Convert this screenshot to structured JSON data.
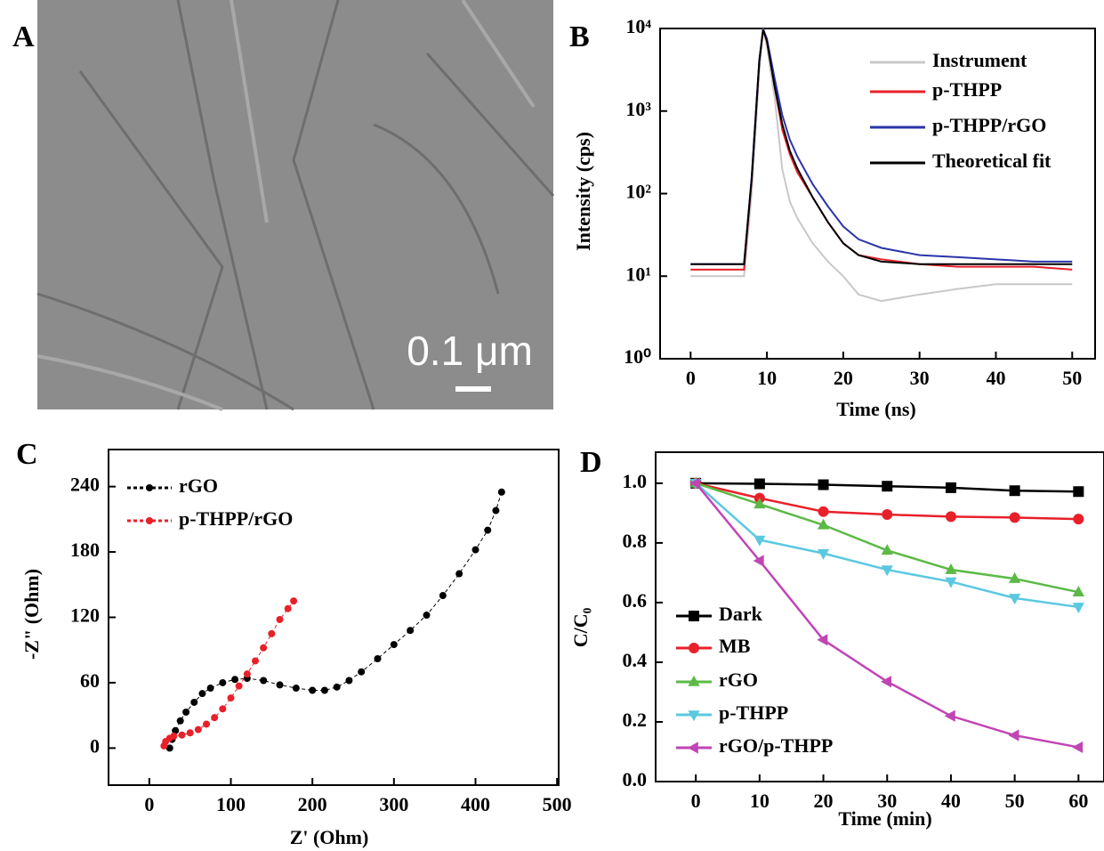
{
  "chart_data": [
    {
      "type": "image",
      "panel_label": "A",
      "scale_bar": "0.1 μm"
    },
    {
      "type": "line",
      "panel_label": "B",
      "x_label": "Time (ns)",
      "y_label": "Intensity (cps)",
      "log_y": true,
      "x": [
        0,
        2,
        4,
        6,
        7,
        8,
        9,
        9.5,
        10,
        11,
        12,
        13,
        14,
        16,
        18,
        20,
        22,
        25,
        30,
        35,
        40,
        45,
        50
      ],
      "series": [
        {
          "name": "Instrument",
          "color": "#c8c8c8",
          "values": [
            10,
            10,
            10,
            10,
            10,
            100,
            3000,
            10000,
            6000,
            1500,
            200,
            80,
            50,
            25,
            15,
            10,
            6,
            5,
            6,
            7,
            8,
            8,
            8
          ]
        },
        {
          "name": "p-THPP",
          "color": "#e8202a",
          "values": [
            12,
            12,
            12,
            12,
            12,
            150,
            4000,
            9500,
            7000,
            2000,
            600,
            300,
            180,
            90,
            45,
            25,
            18,
            16,
            14,
            13,
            13,
            13,
            12
          ]
        },
        {
          "name": "p-THPP/rGO",
          "color": "#2b35a8",
          "values": [
            14,
            14,
            14,
            14,
            14,
            160,
            4200,
            9800,
            7500,
            2500,
            900,
            450,
            280,
            130,
            70,
            40,
            28,
            22,
            18,
            17,
            16,
            15,
            15
          ]
        },
        {
          "name": "Theoretical fit",
          "color": "#000000",
          "values": [
            14,
            14,
            14,
            14,
            14,
            150,
            4000,
            9800,
            7000,
            2000,
            700,
            330,
            200,
            90,
            45,
            25,
            18,
            15,
            14,
            14,
            14,
            14,
            14
          ]
        }
      ],
      "xlim": [
        -4,
        53
      ],
      "xticks": [
        0,
        10,
        20,
        30,
        40,
        50
      ],
      "ylim": [
        1,
        10000
      ],
      "yticks": [
        {
          "value": 1,
          "label": "10⁰"
        },
        {
          "value": 10,
          "label": "10¹"
        },
        {
          "value": 100,
          "label": "10²"
        },
        {
          "value": 1000,
          "label": "10³"
        },
        {
          "value": 10000,
          "label": "10⁴"
        }
      ]
    },
    {
      "type": "line",
      "panel_label": "C",
      "x_label": "Z' (Ohm)",
      "y_label": "-Z\" (Ohm)",
      "marker": "circle",
      "series": [
        {
          "name": "rGO",
          "color": "#000000",
          "x": [
            25,
            28,
            32,
            38,
            45,
            55,
            65,
            75,
            90,
            105,
            120,
            140,
            160,
            180,
            200,
            215,
            230,
            245,
            260,
            280,
            300,
            320,
            340,
            360,
            380,
            400,
            415,
            425,
            432
          ],
          "values": [
            0,
            8,
            16,
            25,
            33,
            42,
            50,
            55,
            60,
            63,
            64,
            62,
            58,
            55,
            53,
            53,
            56,
            62,
            70,
            82,
            95,
            108,
            122,
            140,
            160,
            182,
            200,
            218,
            235
          ]
        },
        {
          "name": "p-THPP/rGO",
          "color": "#e8202a",
          "x": [
            18,
            20,
            25,
            30,
            40,
            50,
            60,
            70,
            80,
            90,
            100,
            110,
            120,
            130,
            140,
            150,
            160,
            170,
            177
          ],
          "values": [
            2,
            6,
            9,
            11,
            12,
            14,
            17,
            22,
            28,
            36,
            46,
            57,
            68,
            80,
            92,
            105,
            118,
            128,
            135
          ]
        }
      ],
      "xlim": [
        -50,
        502
      ],
      "xticks": [
        0,
        100,
        200,
        300,
        400,
        500
      ],
      "ylim": [
        -34,
        274
      ],
      "yticks": [
        0,
        60,
        120,
        180,
        240
      ]
    },
    {
      "type": "line",
      "panel_label": "D",
      "x_label": "Time (min)",
      "y_label": "C/C₀",
      "x": [
        0,
        10,
        20,
        30,
        40,
        50,
        60
      ],
      "series": [
        {
          "name": "Dark",
          "color": "#000000",
          "marker": "square",
          "values": [
            1.0,
            0.998,
            0.995,
            0.99,
            0.985,
            0.975,
            0.972
          ]
        },
        {
          "name": "MB",
          "color": "#e8202a",
          "marker": "circle",
          "values": [
            1.0,
            0.95,
            0.905,
            0.895,
            0.888,
            0.885,
            0.88
          ]
        },
        {
          "name": "rGO",
          "color": "#5cb946",
          "marker": "triangle-up",
          "values": [
            1.0,
            0.93,
            0.86,
            0.775,
            0.71,
            0.68,
            0.635
          ]
        },
        {
          "name": "p-THPP",
          "color": "#5bc8e0",
          "marker": "triangle-down",
          "values": [
            1.0,
            0.81,
            0.765,
            0.71,
            0.67,
            0.615,
            0.585
          ]
        },
        {
          "name": "rGO/p-THPP",
          "color": "#c045b4",
          "marker": "triangle-left",
          "values": [
            1.0,
            0.74,
            0.475,
            0.335,
            0.22,
            0.155,
            0.115
          ]
        }
      ],
      "xlim": [
        -6.3,
        64
      ],
      "xticks": [
        0,
        10,
        20,
        30,
        40,
        50,
        60
      ],
      "ylim": [
        0,
        1.104
      ],
      "yticks": [
        {
          "value": 0,
          "label": "0.0"
        },
        0.2,
        0.4,
        0.6,
        0.8,
        {
          "value": 1,
          "label": "1.0"
        }
      ]
    }
  ]
}
